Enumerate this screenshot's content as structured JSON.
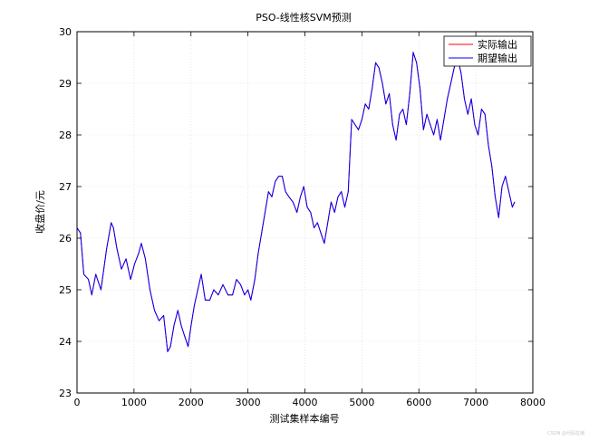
{
  "chart_data": {
    "type": "line",
    "title": "PSO-线性核SVM预测",
    "xlabel": "测试集样本编号",
    "ylabel": "收盘价/元",
    "xlim": [
      0,
      8000
    ],
    "ylim": [
      23,
      30
    ],
    "xticks": [
      0,
      1000,
      2000,
      3000,
      4000,
      5000,
      6000,
      7000,
      8000
    ],
    "yticks": [
      23,
      24,
      25,
      26,
      27,
      28,
      29,
      30
    ],
    "xtick_labels": [
      "0",
      "1000",
      "2000",
      "3000",
      "4000",
      "5000",
      "6000",
      "7000",
      "8000"
    ],
    "ytick_labels": [
      "23",
      "24",
      "25",
      "26",
      "27",
      "28",
      "29",
      "30"
    ],
    "grid": true,
    "legend_position": "top-right",
    "series": [
      {
        "name": "实际输出",
        "color": "#ff0000",
        "x": [
          0,
          60,
          120,
          200,
          260,
          330,
          420,
          520,
          600,
          640,
          700,
          780,
          860,
          940,
          1010,
          1080,
          1130,
          1200,
          1280,
          1360,
          1440,
          1520,
          1590,
          1640,
          1700,
          1770,
          1830,
          1890,
          1950,
          2000,
          2060,
          2120,
          2180,
          2250,
          2330,
          2400,
          2480,
          2560,
          2650,
          2730,
          2800,
          2870,
          2940,
          3000,
          3050,
          3120,
          3180,
          3240,
          3300,
          3360,
          3420,
          3480,
          3540,
          3600,
          3660,
          3720,
          3790,
          3860,
          3920,
          3980,
          4040,
          4100,
          4160,
          4220,
          4280,
          4340,
          4400,
          4460,
          4520,
          4580,
          4640,
          4700,
          4760,
          4820,
          4880,
          4940,
          5000,
          5060,
          5120,
          5180,
          5240,
          5300,
          5360,
          5420,
          5480,
          5540,
          5600,
          5660,
          5720,
          5780,
          5840,
          5900,
          5960,
          6020,
          6080,
          6140,
          6200,
          6260,
          6320,
          6380,
          6440,
          6500,
          6560,
          6620,
          6680,
          6740,
          6800,
          6860,
          6920,
          6980,
          7040,
          7100,
          7160,
          7220,
          7280,
          7340,
          7400,
          7460,
          7520,
          7580,
          7640,
          7680
        ],
        "values": [
          26.2,
          26.1,
          25.3,
          25.2,
          24.9,
          25.3,
          25.0,
          25.8,
          26.3,
          26.2,
          25.8,
          25.4,
          25.6,
          25.2,
          25.5,
          25.7,
          25.9,
          25.6,
          25.0,
          24.6,
          24.4,
          24.5,
          23.8,
          23.9,
          24.3,
          24.6,
          24.3,
          24.1,
          23.9,
          24.3,
          24.7,
          25.0,
          25.3,
          24.8,
          24.8,
          25.0,
          24.9,
          25.1,
          24.9,
          24.9,
          25.2,
          25.1,
          24.9,
          25.0,
          24.8,
          25.2,
          25.7,
          26.1,
          26.5,
          26.9,
          26.8,
          27.1,
          27.2,
          27.2,
          26.9,
          26.8,
          26.7,
          26.5,
          26.8,
          27.0,
          26.6,
          26.5,
          26.2,
          26.3,
          26.1,
          25.9,
          26.3,
          26.7,
          26.5,
          26.8,
          26.9,
          26.6,
          26.9,
          28.3,
          28.2,
          28.1,
          28.3,
          28.6,
          28.5,
          28.9,
          29.4,
          29.3,
          29.0,
          28.6,
          28.8,
          28.2,
          27.9,
          28.4,
          28.5,
          28.2,
          28.8,
          29.6,
          29.4,
          28.9,
          28.1,
          28.4,
          28.2,
          28.0,
          28.3,
          27.9,
          28.3,
          28.7,
          29.0,
          29.3,
          29.5,
          29.2,
          28.7,
          28.4,
          28.7,
          28.2,
          28.0,
          28.5,
          28.4,
          27.8,
          27.4,
          26.8,
          26.4,
          27.0,
          27.2,
          26.9,
          26.6,
          26.7
        ]
      },
      {
        "name": "期望输出",
        "color": "#0000ff",
        "x": [
          0,
          60,
          120,
          200,
          260,
          330,
          420,
          520,
          600,
          640,
          700,
          780,
          860,
          940,
          1010,
          1080,
          1130,
          1200,
          1280,
          1360,
          1440,
          1520,
          1590,
          1640,
          1700,
          1770,
          1830,
          1890,
          1950,
          2000,
          2060,
          2120,
          2180,
          2250,
          2330,
          2400,
          2480,
          2560,
          2650,
          2730,
          2800,
          2870,
          2940,
          3000,
          3050,
          3120,
          3180,
          3240,
          3300,
          3360,
          3420,
          3480,
          3540,
          3600,
          3660,
          3720,
          3790,
          3860,
          3920,
          3980,
          4040,
          4100,
          4160,
          4220,
          4280,
          4340,
          4400,
          4460,
          4520,
          4580,
          4640,
          4700,
          4760,
          4820,
          4880,
          4940,
          5000,
          5060,
          5120,
          5180,
          5240,
          5300,
          5360,
          5420,
          5480,
          5540,
          5600,
          5660,
          5720,
          5780,
          5840,
          5900,
          5960,
          6020,
          6080,
          6140,
          6200,
          6260,
          6320,
          6380,
          6440,
          6500,
          6560,
          6620,
          6680,
          6740,
          6800,
          6860,
          6920,
          6980,
          7040,
          7100,
          7160,
          7220,
          7280,
          7340,
          7400,
          7460,
          7520,
          7580,
          7640,
          7680
        ],
        "values": [
          26.2,
          26.1,
          25.3,
          25.2,
          24.9,
          25.3,
          25.0,
          25.8,
          26.3,
          26.2,
          25.8,
          25.4,
          25.6,
          25.2,
          25.5,
          25.7,
          25.9,
          25.6,
          25.0,
          24.6,
          24.4,
          24.5,
          23.8,
          23.9,
          24.3,
          24.6,
          24.3,
          24.1,
          23.9,
          24.3,
          24.7,
          25.0,
          25.3,
          24.8,
          24.8,
          25.0,
          24.9,
          25.1,
          24.9,
          24.9,
          25.2,
          25.1,
          24.9,
          25.0,
          24.8,
          25.2,
          25.7,
          26.1,
          26.5,
          26.9,
          26.8,
          27.1,
          27.2,
          27.2,
          26.9,
          26.8,
          26.7,
          26.5,
          26.8,
          27.0,
          26.6,
          26.5,
          26.2,
          26.3,
          26.1,
          25.9,
          26.3,
          26.7,
          26.5,
          26.8,
          26.9,
          26.6,
          26.9,
          28.3,
          28.2,
          28.1,
          28.3,
          28.6,
          28.5,
          28.9,
          29.4,
          29.3,
          29.0,
          28.6,
          28.8,
          28.2,
          27.9,
          28.4,
          28.5,
          28.2,
          28.8,
          29.6,
          29.4,
          28.9,
          28.1,
          28.4,
          28.2,
          28.0,
          28.3,
          27.9,
          28.3,
          28.7,
          29.0,
          29.3,
          29.5,
          29.2,
          28.7,
          28.4,
          28.7,
          28.2,
          28.0,
          28.5,
          28.4,
          27.8,
          27.4,
          26.8,
          26.4,
          27.0,
          27.2,
          26.9,
          26.6,
          26.7
        ]
      }
    ]
  },
  "watermark": "CSDN @代码狂潮"
}
